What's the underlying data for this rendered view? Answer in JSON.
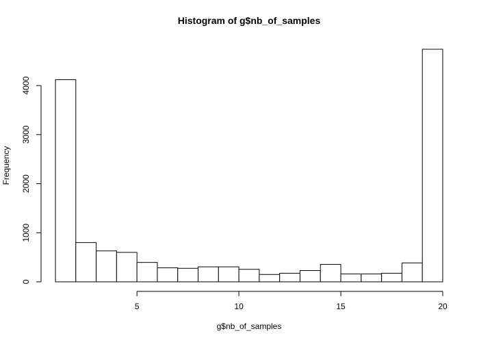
{
  "chart_data": {
    "type": "bar",
    "title": "Histogram of g$nb_of_samples",
    "xlabel": "g$nb_of_samples",
    "ylabel": "Frequency",
    "bin_edges": [
      1,
      2,
      3,
      4,
      5,
      6,
      7,
      8,
      9,
      10,
      11,
      12,
      13,
      14,
      15,
      16,
      17,
      18,
      19,
      20
    ],
    "values": [
      4120,
      800,
      630,
      600,
      395,
      285,
      275,
      305,
      305,
      255,
      150,
      175,
      230,
      355,
      160,
      160,
      175,
      385,
      4740
    ],
    "xlim": [
      1,
      20
    ],
    "ylim": [
      0,
      4740
    ],
    "x_ticks": [
      5,
      10,
      15,
      20
    ],
    "y_ticks": [
      0,
      1000,
      2000,
      3000,
      4000
    ],
    "grid": false
  }
}
